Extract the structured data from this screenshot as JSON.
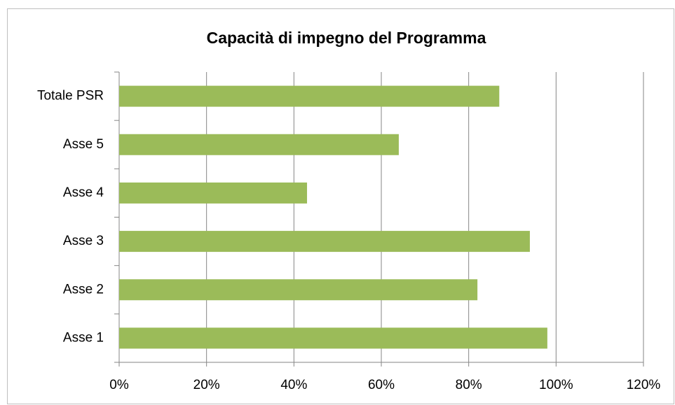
{
  "chart_data": {
    "type": "hbar",
    "title": "Capacità di impegno del Programma",
    "categories": [
      "Totale PSR",
      "Asse 5",
      "Asse 4",
      "Asse 3",
      "Asse 2",
      "Asse 1"
    ],
    "values": [
      87,
      64,
      43,
      94,
      82,
      98
    ],
    "color": "#9bbb59",
    "xlim": [
      0,
      120
    ],
    "xticks": [
      {
        "value": 0,
        "label": "0%"
      },
      {
        "value": 20,
        "label": "20%"
      },
      {
        "value": 40,
        "label": "40%"
      },
      {
        "value": 60,
        "label": "60%"
      },
      {
        "value": 80,
        "label": "80%"
      },
      {
        "value": 100,
        "label": "100%"
      },
      {
        "value": 120,
        "label": "120%"
      }
    ],
    "grid": true
  }
}
